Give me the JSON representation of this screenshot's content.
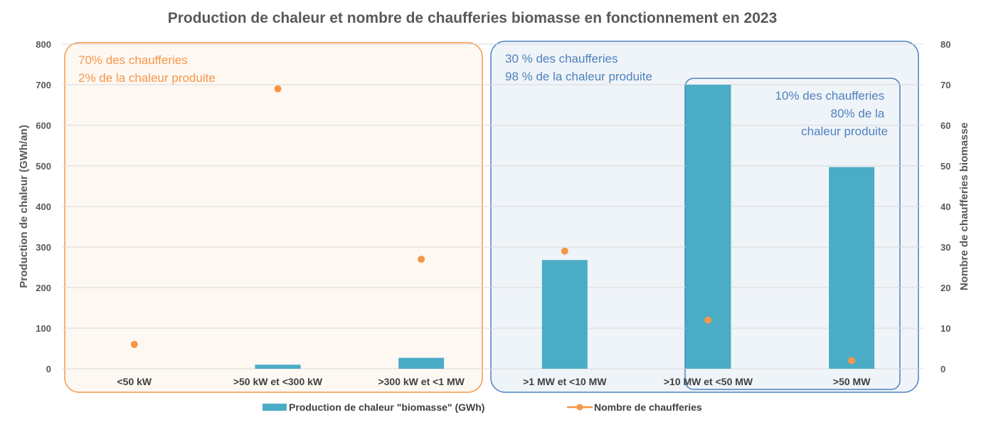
{
  "chart_data": {
    "type": "bar",
    "title": "Production de chaleur et nombre de chaufferies biomasse en fonctionnement en 2023",
    "categories": [
      "<50 kW",
      ">50 kW et <300 kW",
      ">300 kW et <1 MW",
      ">1 MW et <10 MW",
      ">10 MW et <50 MW",
      ">50 MW"
    ],
    "ylabel": "Production de chaleur (GWh/an)",
    "y2label": "Nombre de chaufferies biomasse",
    "ylim": [
      0,
      800
    ],
    "y2lim": [
      0,
      80
    ],
    "yticks": [
      0,
      100,
      200,
      300,
      400,
      500,
      600,
      700,
      800
    ],
    "y2ticks": [
      0,
      10,
      20,
      30,
      40,
      50,
      60,
      70,
      80
    ],
    "grid": true,
    "legend_position": "bottom",
    "series": [
      {
        "name": "Production de chaleur \"biomasse\" (GWh)",
        "type": "bar",
        "axis": "left",
        "color": "#4BACC6",
        "values": [
          0,
          10,
          27,
          268,
          700,
          497
        ]
      },
      {
        "name": "Nombre de chaufferies",
        "type": "scatter",
        "axis": "right",
        "color": "#F79646",
        "values": [
          6,
          69,
          27,
          29,
          12,
          2
        ]
      }
    ],
    "annotations": [
      {
        "lines": [
          "70% des chaufferies",
          "2% de la chaleur produite"
        ],
        "color": "#F79646",
        "align": "left"
      },
      {
        "lines": [
          "30 % des chaufferies",
          "98 % de la chaleur produite"
        ],
        "color": "#4F81BD",
        "align": "left"
      },
      {
        "lines": [
          "10% des chaufferies",
          "80% de la",
          "chaleur produite"
        ],
        "color": "#4F81BD",
        "align": "right"
      }
    ]
  }
}
